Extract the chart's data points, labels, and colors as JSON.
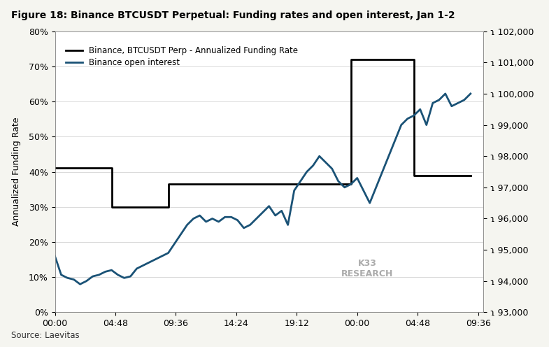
{
  "title": "Figure 18: Binance BTCUSDT Perpetual: Funding rates and open interest, Jan 1-2",
  "source": "Source: Laevitas",
  "watermark": "K33\nRESEARCH",
  "ylabel_left": "Annualized Funding Rate",
  "ylim_left": [
    0,
    0.8
  ],
  "ylim_right": [
    93000,
    102000
  ],
  "legend_line1": "Binance, BTCUSDT Perp - Annualized Funding Rate",
  "legend_line2": "Binance open interest",
  "background_color": "#f5f5f0",
  "plot_bg_color": "#ffffff",
  "funding_rate_color": "#000000",
  "open_interest_color": "#1a5276",
  "funding_rate_x": [
    0,
    4.5,
    4.5,
    9.0,
    9.0,
    13.0,
    13.0,
    23.5,
    23.5,
    28.5,
    28.5,
    33.0
  ],
  "funding_rate_y": [
    0.41,
    0.41,
    0.3,
    0.3,
    0.365,
    0.365,
    0.365,
    0.365,
    0.72,
    0.72,
    0.39,
    0.39
  ],
  "open_interest_x": [
    0.0,
    0.5,
    1.0,
    1.5,
    2.0,
    2.5,
    3.0,
    3.5,
    4.0,
    4.5,
    5.0,
    5.5,
    6.0,
    6.5,
    7.0,
    7.5,
    8.0,
    8.5,
    9.0,
    9.5,
    10.0,
    10.5,
    11.0,
    11.5,
    12.0,
    12.5,
    13.0,
    13.5,
    14.0,
    14.5,
    15.0,
    15.5,
    16.0,
    16.5,
    17.0,
    17.5,
    18.0,
    18.5,
    19.0,
    19.5,
    20.0,
    20.5,
    21.0,
    21.5,
    22.0,
    22.5,
    23.0,
    23.5,
    24.0,
    24.5,
    25.0,
    25.5,
    26.0,
    26.5,
    27.0,
    27.5,
    28.0,
    28.5,
    29.0,
    29.5,
    30.0,
    30.5,
    31.0,
    31.5,
    32.0,
    32.5,
    33.0
  ],
  "open_interest_y": [
    94800,
    94200,
    94100,
    94050,
    93900,
    94000,
    94150,
    94200,
    94300,
    94350,
    94200,
    94100,
    94150,
    94400,
    94500,
    94600,
    94700,
    94800,
    94900,
    95200,
    95500,
    95800,
    96000,
    96100,
    95900,
    96000,
    95900,
    96050,
    96050,
    95950,
    95700,
    95800,
    96000,
    96200,
    96400,
    96100,
    96250,
    95800,
    96900,
    97200,
    97500,
    97700,
    98000,
    97800,
    97600,
    97200,
    97000,
    97100,
    97300,
    96900,
    96500,
    97000,
    97500,
    98000,
    98500,
    99000,
    99200,
    99300,
    99500,
    99000,
    99700,
    99800,
    100000,
    99600,
    99700,
    99800,
    100000
  ],
  "xtick_positions": [
    0,
    4.8,
    9.6,
    14.4,
    19.2,
    24.0,
    28.8,
    33.6
  ],
  "xtick_labels": [
    "00:00",
    "04:48",
    "09:36",
    "14:24",
    "19:12",
    "00:00",
    "04:48",
    "09:36"
  ],
  "yticks_left": [
    0.0,
    0.1,
    0.2,
    0.3,
    0.4,
    0.5,
    0.6,
    0.7,
    0.8
  ],
  "ytick_labels_left": [
    "0%",
    "10%",
    "20%",
    "30%",
    "40%",
    "50%",
    "60%",
    "70%",
    "80%"
  ],
  "yticks_right": [
    93000,
    94000,
    95000,
    96000,
    97000,
    98000,
    99000,
    100000,
    101000,
    102000
  ],
  "ytick_labels_right": [
    "ɿ 93,000",
    "ɿ 94,000",
    "ɿ 95,000",
    "ɿ 96,000",
    "ɿ 97,000",
    "ɿ 98,000",
    "ɿ 99,000",
    "ɿ 100,000",
    "ɿ 101,000",
    "ɿ 102,000"
  ]
}
